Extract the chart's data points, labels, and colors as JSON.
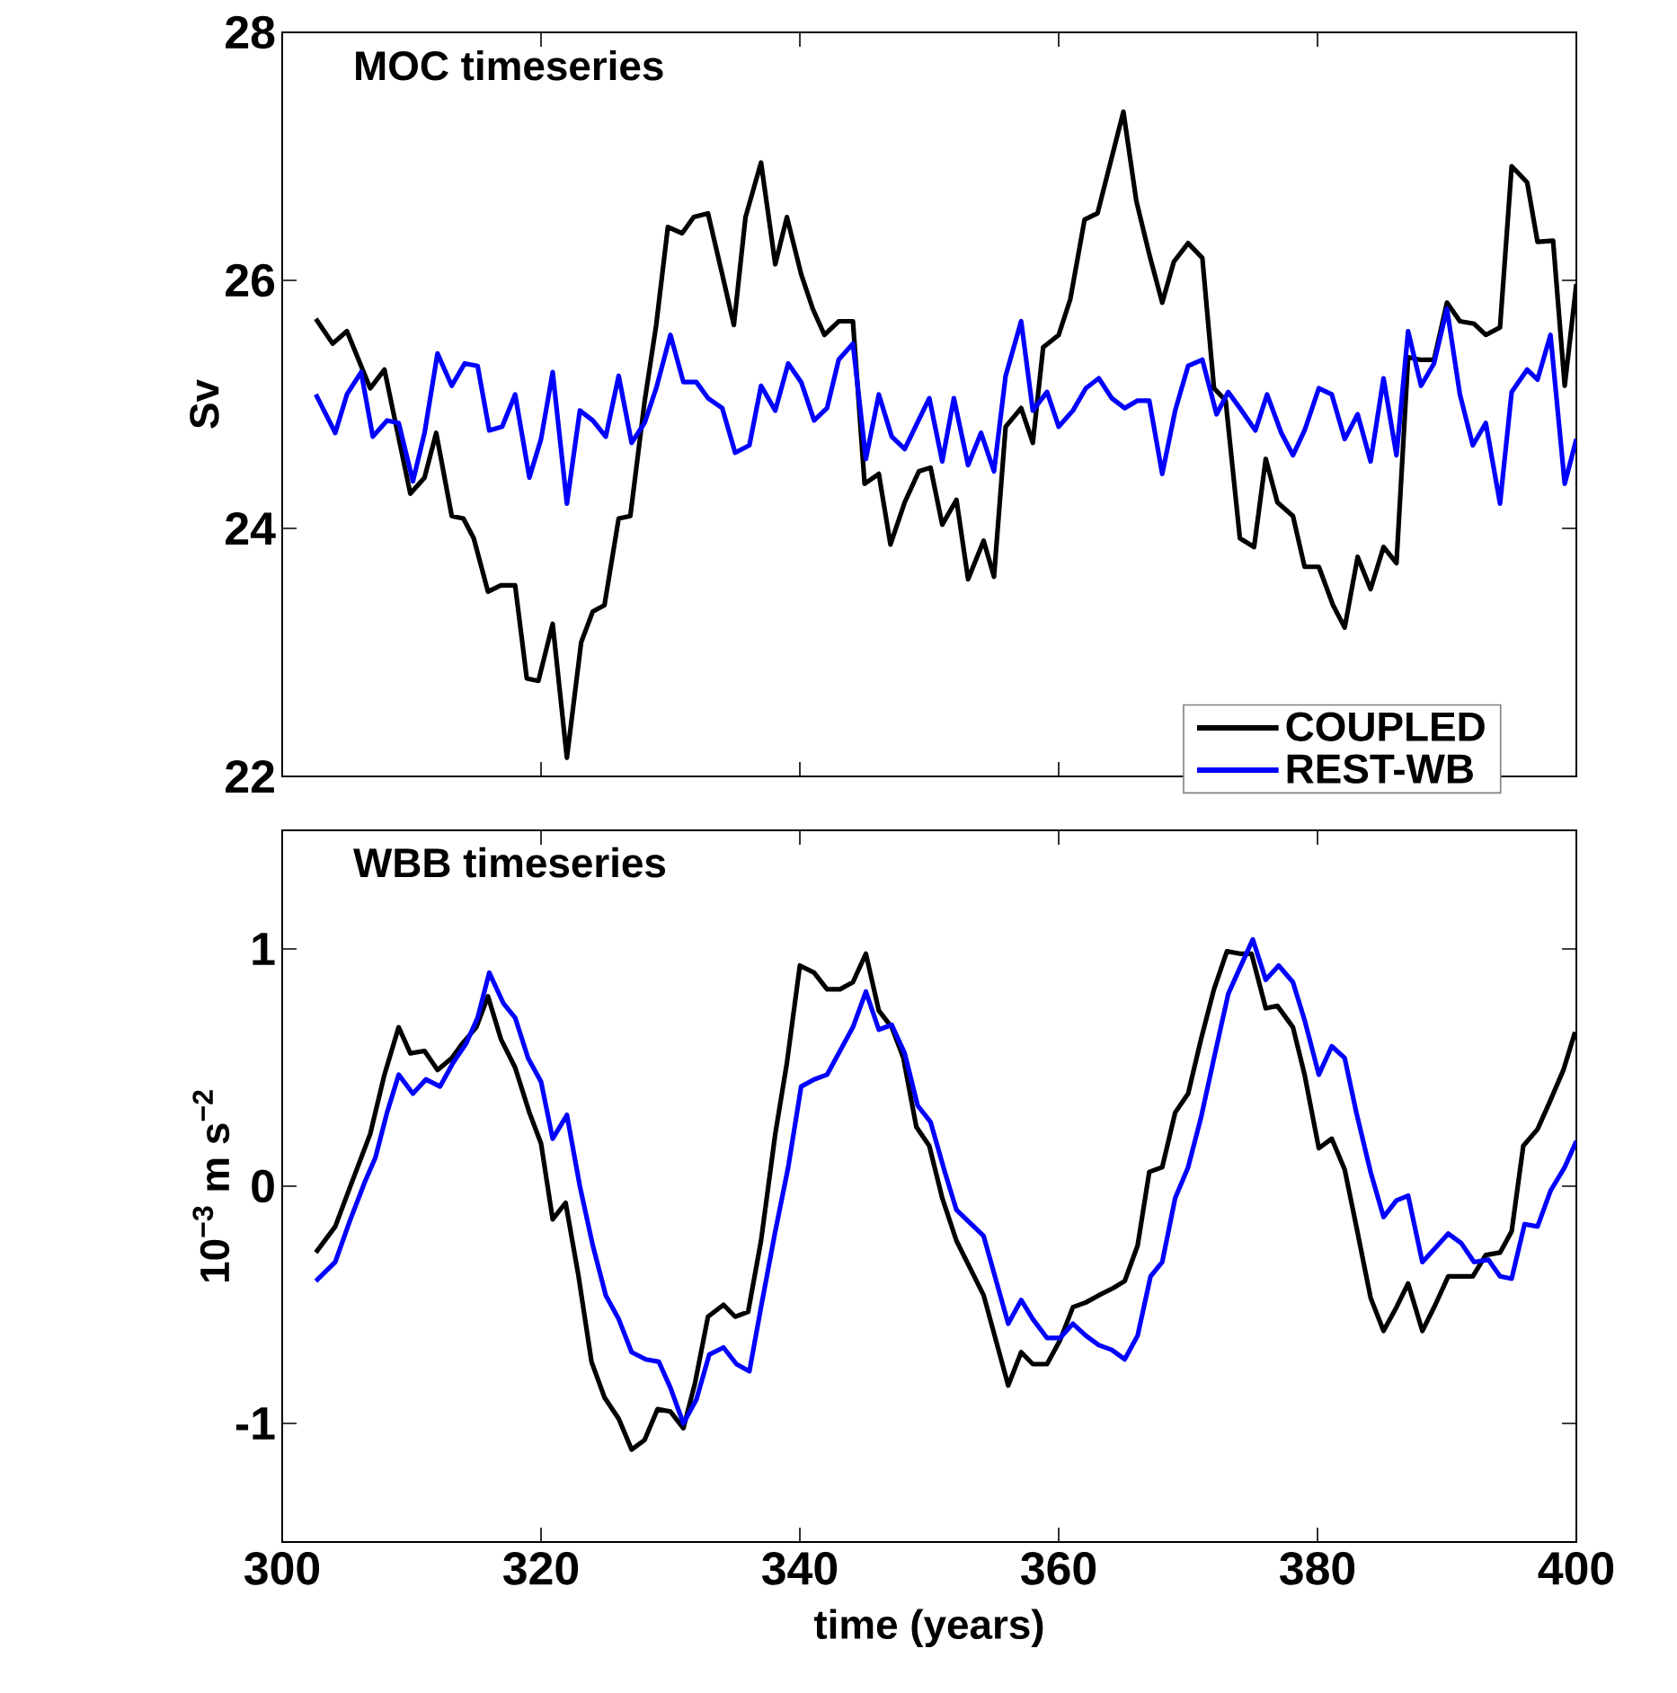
{
  "chart_data": [
    {
      "type": "line",
      "title": "MOC timeseries",
      "ylabel": "Sv",
      "xlim": [
        300,
        400
      ],
      "xticks": [
        300,
        320,
        340,
        360,
        380,
        400
      ],
      "ylim": [
        22,
        28
      ],
      "yticks": [
        22,
        24,
        26,
        28
      ],
      "tick_labels": "y",
      "legend": "bottom right",
      "series": [
        {
          "name": "COUPLED",
          "color": "#000000",
          "x": [
            302.6,
            303.9,
            305.0,
            306.8,
            307.9,
            309.9,
            311.0,
            311.9,
            313.1,
            314.0,
            314.8,
            315.9,
            316.9,
            318.0,
            318.9,
            319.8,
            320.9,
            322.0,
            323.1,
            324.0,
            324.9,
            326.0,
            326.9,
            328.0,
            328.9,
            329.8,
            330.9,
            331.8,
            332.9,
            334.0,
            334.9,
            335.8,
            337.0,
            338.1,
            339.0,
            340.1,
            341.0,
            341.9,
            343.0,
            344.1,
            345.0,
            346.1,
            347.0,
            348.1,
            349.2,
            350.1,
            351.0,
            352.1,
            353.0,
            354.2,
            355.0,
            355.9,
            357.1,
            358.0,
            358.8,
            360.0,
            360.9,
            362.0,
            363.0,
            364.0,
            365.0,
            366.0,
            367.0,
            368.0,
            368.9,
            370.0,
            371.1,
            372.0,
            372.9,
            374.0,
            375.1,
            376.0,
            376.9,
            378.1,
            379.0,
            380.1,
            381.2,
            382.1,
            383.1,
            384.1,
            385.1,
            386.1,
            387.0,
            387.9,
            389.0,
            390.0,
            391.0,
            392.1,
            393.0,
            394.1,
            395.0,
            396.2,
            397.0,
            398.2,
            399.1,
            400.0
          ],
          "values": [
            25.69,
            25.49,
            25.59,
            25.13,
            25.28,
            24.28,
            24.41,
            24.77,
            24.1,
            24.08,
            23.92,
            23.49,
            23.54,
            23.54,
            22.79,
            22.77,
            23.23,
            22.15,
            23.08,
            23.33,
            23.38,
            24.08,
            24.1,
            25.02,
            25.64,
            26.43,
            26.38,
            26.51,
            26.54,
            26.05,
            25.64,
            26.51,
            26.95,
            26.13,
            26.51,
            26.05,
            25.77,
            25.56,
            25.67,
            25.67,
            24.36,
            24.44,
            23.87,
            24.21,
            24.46,
            24.49,
            24.03,
            24.23,
            23.59,
            23.9,
            23.61,
            24.82,
            24.97,
            24.69,
            25.46,
            25.56,
            25.85,
            26.49,
            26.54,
            26.95,
            27.36,
            26.64,
            26.21,
            25.82,
            26.15,
            26.3,
            26.18,
            25.13,
            25.03,
            23.92,
            23.85,
            24.56,
            24.21,
            24.1,
            23.69,
            23.69,
            23.38,
            23.2,
            23.77,
            23.51,
            23.85,
            23.72,
            25.38,
            25.36,
            25.36,
            25.82,
            25.67,
            25.65,
            25.56,
            25.62,
            26.92,
            26.79,
            26.31,
            26.32,
            25.15,
            25.97
          ]
        },
        {
          "name": "REST-WB",
          "color": "#0000ff",
          "x": [
            302.6,
            304.1,
            305.0,
            306.1,
            307.0,
            308.1,
            309.0,
            310.1,
            311.0,
            312.0,
            313.1,
            314.1,
            315.1,
            316.0,
            317.0,
            318.0,
            319.1,
            320.0,
            320.9,
            322.0,
            323.0,
            324.0,
            325.0,
            326.0,
            327.0,
            328.0,
            328.9,
            330.0,
            331.0,
            332.0,
            332.9,
            334.0,
            335.0,
            336.1,
            337.0,
            338.1,
            339.1,
            340.1,
            341.1,
            342.1,
            343.0,
            344.1,
            345.1,
            346.1,
            347.1,
            348.1,
            350.0,
            351.0,
            351.9,
            353.0,
            354.0,
            355.0,
            355.9,
            357.1,
            358.0,
            359.1,
            360.0,
            361.1,
            362.1,
            363.1,
            364.1,
            365.1,
            366.1,
            367.0,
            368.0,
            369.0,
            370.0,
            371.1,
            372.2,
            373.1,
            374.0,
            375.2,
            376.1,
            377.2,
            378.1,
            379.0,
            380.1,
            381.1,
            382.1,
            383.1,
            384.1,
            385.1,
            386.1,
            387.0,
            388.0,
            389.0,
            390.0,
            391.0,
            392.0,
            393.0,
            394.1,
            395.0,
            396.2,
            397.0,
            398.0,
            399.1,
            400.0
          ],
          "values": [
            25.08,
            24.77,
            25.08,
            25.26,
            24.74,
            24.87,
            24.85,
            24.38,
            24.77,
            25.41,
            25.15,
            25.33,
            25.31,
            24.79,
            24.82,
            25.08,
            24.41,
            24.72,
            25.26,
            24.2,
            24.95,
            24.87,
            24.74,
            25.23,
            24.69,
            24.85,
            25.13,
            25.56,
            25.18,
            25.18,
            25.05,
            24.97,
            24.61,
            24.67,
            25.15,
            24.95,
            25.33,
            25.18,
            24.87,
            24.97,
            25.36,
            25.49,
            24.56,
            25.08,
            24.74,
            24.64,
            25.05,
            24.54,
            25.05,
            24.51,
            24.77,
            24.46,
            25.23,
            25.67,
            24.95,
            25.1,
            24.82,
            24.95,
            25.13,
            25.21,
            25.05,
            24.97,
            25.03,
            25.03,
            24.44,
            24.95,
            25.31,
            25.36,
            24.92,
            25.1,
            24.97,
            24.79,
            25.08,
            24.77,
            24.59,
            24.79,
            25.13,
            25.08,
            24.72,
            24.92,
            24.54,
            25.21,
            24.59,
            25.59,
            25.15,
            25.33,
            25.77,
            25.08,
            24.67,
            24.85,
            24.2,
            25.1,
            25.28,
            25.2,
            25.56,
            24.36,
            24.72
          ]
        }
      ]
    },
    {
      "type": "line",
      "title": "WBB timeseries",
      "xlabel": "time (years)",
      "ylabel": "10$^{−3}$ m s$^{−2}$",
      "xlim": [
        300,
        400
      ],
      "xticks": [
        300,
        320,
        340,
        360,
        380,
        400
      ],
      "ylim": [
        -1.5,
        1.5
      ],
      "yticks": [
        -1,
        0,
        1
      ],
      "series": [
        {
          "color": "#000000",
          "x": [
            302.6,
            304.1,
            305.2,
            306.8,
            307.9,
            309.0,
            309.9,
            311.0,
            312.0,
            313.1,
            313.9,
            315.0,
            315.9,
            316.9,
            318.0,
            319.1,
            320.0,
            320.9,
            321.9,
            322.9,
            323.9,
            324.9,
            326.0,
            327.0,
            328.0,
            329.0,
            330.0,
            331.0,
            331.9,
            332.9,
            334.1,
            335.0,
            336.0,
            337.0,
            338.1,
            339.0,
            340.0,
            341.1,
            342.1,
            343.1,
            344.1,
            345.1,
            346.1,
            347.1,
            348.0,
            349.0,
            350.0,
            351.0,
            352.1,
            354.2,
            356.1,
            357.1,
            358.0,
            359.1,
            360.1,
            361.1,
            362.1,
            363.1,
            364.2,
            365.1,
            366.1,
            367.0,
            368.0,
            369.0,
            370.0,
            371.0,
            372.0,
            373.0,
            374.0,
            374.9,
            376.0,
            376.9,
            378.1,
            379.0,
            380.1,
            381.1,
            382.1,
            383.0,
            384.1,
            385.1,
            386.1,
            387.0,
            388.1,
            389.1,
            390.1,
            391.0,
            392.0,
            393.0,
            394.1,
            395.0,
            395.9,
            397.0,
            397.9,
            399.0,
            399.9
          ],
          "values": [
            -0.28,
            -0.17,
            -0.01,
            0.22,
            0.47,
            0.67,
            0.56,
            0.57,
            0.49,
            0.54,
            0.6,
            0.67,
            0.8,
            0.62,
            0.5,
            0.31,
            0.18,
            -0.14,
            -0.07,
            -0.38,
            -0.74,
            -0.89,
            -0.98,
            -1.11,
            -1.07,
            -0.94,
            -0.95,
            -1.02,
            -0.83,
            -0.55,
            -0.5,
            -0.55,
            -0.53,
            -0.23,
            0.22,
            0.52,
            0.93,
            0.9,
            0.83,
            0.83,
            0.86,
            0.98,
            0.74,
            0.67,
            0.54,
            0.25,
            0.17,
            -0.05,
            -0.23,
            -0.46,
            -0.84,
            -0.7,
            -0.75,
            -0.75,
            -0.65,
            -0.51,
            -0.49,
            -0.46,
            -0.43,
            -0.4,
            -0.25,
            0.06,
            0.08,
            0.31,
            0.39,
            0.62,
            0.83,
            0.99,
            0.98,
            0.98,
            0.75,
            0.76,
            0.67,
            0.47,
            0.16,
            0.2,
            0.07,
            -0.17,
            -0.47,
            -0.61,
            -0.51,
            -0.41,
            -0.61,
            -0.5,
            -0.38,
            -0.38,
            -0.38,
            -0.29,
            -0.28,
            -0.19,
            0.17,
            0.24,
            0.35,
            0.49,
            0.65
          ]
        },
        {
          "color": "#0000ff",
          "x": [
            302.6,
            304.1,
            305.2,
            306.4,
            307.2,
            308.1,
            309.0,
            310.1,
            311.1,
            312.2,
            313.2,
            314.2,
            315.1,
            316.0,
            317.1,
            318.0,
            319.0,
            320.0,
            320.9,
            322.0,
            323.0,
            324.0,
            325.0,
            326.0,
            327.0,
            328.1,
            329.1,
            330.0,
            331.0,
            332.0,
            333.0,
            334.1,
            335.1,
            336.1,
            337.0,
            338.1,
            339.1,
            340.1,
            341.1,
            342.1,
            343.1,
            344.1,
            345.1,
            346.1,
            347.1,
            348.1,
            349.1,
            350.1,
            351.2,
            352.1,
            354.2,
            356.1,
            357.1,
            358.0,
            359.1,
            360.1,
            361.1,
            362.1,
            363.1,
            364.1,
            365.1,
            366.1,
            367.1,
            368.0,
            369.0,
            370.0,
            371.0,
            372.0,
            373.1,
            374.0,
            375.0,
            376.0,
            377.0,
            378.1,
            379.0,
            380.1,
            381.1,
            382.1,
            383.0,
            384.1,
            385.1,
            386.1,
            387.0,
            388.1,
            389.1,
            390.1,
            391.1,
            392.1,
            393.2,
            394.1,
            395.0,
            396.0,
            397.0,
            398.0,
            399.1,
            400.0
          ],
          "values": [
            -0.4,
            -0.32,
            -0.15,
            0.02,
            0.12,
            0.31,
            0.47,
            0.39,
            0.45,
            0.42,
            0.52,
            0.6,
            0.71,
            0.9,
            0.77,
            0.71,
            0.54,
            0.44,
            0.2,
            0.3,
            0.0,
            -0.25,
            -0.46,
            -0.56,
            -0.7,
            -0.73,
            -0.74,
            -0.85,
            -1.0,
            -0.9,
            -0.71,
            -0.68,
            -0.75,
            -0.78,
            -0.51,
            -0.19,
            0.08,
            0.42,
            0.45,
            0.47,
            0.57,
            0.67,
            0.82,
            0.66,
            0.68,
            0.56,
            0.34,
            0.27,
            0.06,
            -0.1,
            -0.21,
            -0.58,
            -0.48,
            -0.56,
            -0.64,
            -0.64,
            -0.58,
            -0.63,
            -0.67,
            -0.69,
            -0.73,
            -0.63,
            -0.38,
            -0.32,
            -0.05,
            0.08,
            0.29,
            0.54,
            0.81,
            0.92,
            1.04,
            0.87,
            0.93,
            0.86,
            0.7,
            0.47,
            0.59,
            0.54,
            0.31,
            0.06,
            -0.13,
            -0.06,
            -0.04,
            -0.32,
            -0.26,
            -0.2,
            -0.24,
            -0.32,
            -0.31,
            -0.38,
            -0.39,
            -0.16,
            -0.17,
            -0.02,
            0.08,
            0.19
          ]
        }
      ]
    }
  ]
}
